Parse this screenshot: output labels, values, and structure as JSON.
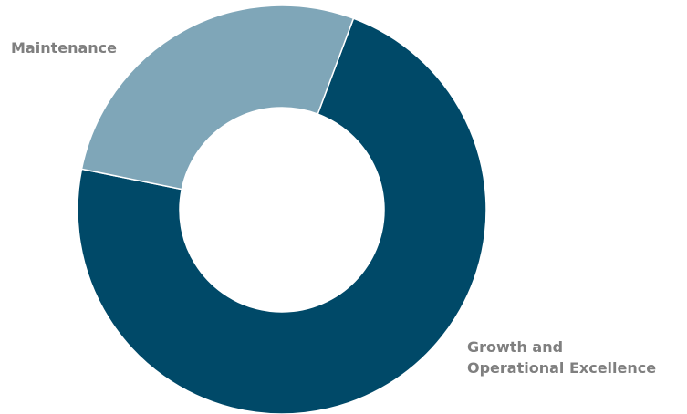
{
  "chart_data": {
    "type": "pie",
    "variant": "donut",
    "title": "",
    "legend": "none",
    "slices": [
      {
        "label_lines": [
          "Growth and",
          "Operational Excellence"
        ],
        "value": 72.5,
        "color": "#004968"
      },
      {
        "label_lines": [
          "Maintenance"
        ],
        "value": 27.5,
        "color": "#7fa6b8"
      }
    ]
  }
}
